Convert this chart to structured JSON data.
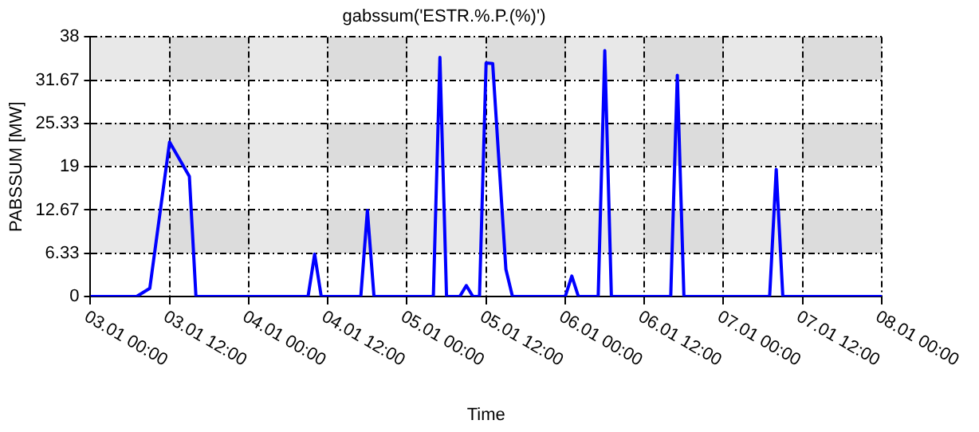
{
  "chart_data": {
    "type": "line",
    "title": "gabssum('ESTR.%.P.(%)')",
    "xlabel": "Time",
    "ylabel": "PABSSUM [MW]",
    "x": [
      "--01-03T00:00",
      "--01-03T07:00",
      "--01-03T09:00",
      "--01-03T12:00",
      "--01-03T15:00",
      "--01-03T16:00",
      "--01-04T09:00",
      "--01-04T10:00",
      "--01-04T11:00",
      "--01-04T17:00",
      "--01-04T18:00",
      "--01-04T19:00",
      "--01-05T04:00",
      "--01-05T05:00",
      "--01-05T06:00",
      "--01-05T08:00",
      "--01-05T09:00",
      "--01-05T10:00",
      "--01-05T11:00",
      "--01-05T12:00",
      "--01-05T13:00",
      "--01-05T15:00",
      "--01-05T16:00",
      "--01-06T00:00",
      "--01-06T01:00",
      "--01-06T02:00",
      "--01-06T05:00",
      "--01-06T06:00",
      "--01-06T07:00",
      "--01-06T16:00",
      "--01-06T17:00",
      "--01-06T18:00",
      "--01-07T07:00",
      "--01-07T08:00",
      "--01-07T09:00",
      "--01-08T00:00"
    ],
    "series": [
      {
        "color": "#0000ff",
        "values": [
          0,
          0,
          1.2,
          22.6,
          17.6,
          0,
          0,
          6.2,
          0,
          0,
          12.6,
          0,
          0,
          35,
          0,
          0,
          1.6,
          0,
          0,
          34.2,
          34.1,
          4,
          0,
          0,
          3,
          0,
          0,
          36,
          0,
          0,
          32.4,
          0,
          0,
          18.6,
          0,
          0
        ]
      }
    ],
    "xlim": [
      "--01-03T00:00",
      "--01-08T00:00"
    ],
    "xticks": [
      {
        "value": "--01-03T00:00",
        "label": "03.01 00:00"
      },
      {
        "value": "--01-03T12:00",
        "label": "03.01 12:00"
      },
      {
        "value": "--01-04T00:00",
        "label": "04.01 00:00"
      },
      {
        "value": "--01-04T12:00",
        "label": "04.01 12:00"
      },
      {
        "value": "--01-05T00:00",
        "label": "05.01 00:00"
      },
      {
        "value": "--01-05T12:00",
        "label": "05.01 12:00"
      },
      {
        "value": "--01-06T00:00",
        "label": "06.01 00:00"
      },
      {
        "value": "--01-06T12:00",
        "label": "06.01 12:00"
      },
      {
        "value": "--01-07T00:00",
        "label": "07.01 00:00"
      },
      {
        "value": "--01-07T12:00",
        "label": "07.01 12:00"
      },
      {
        "value": "--01-08T00:00",
        "label": "08.01 00:00"
      }
    ],
    "ylim": [
      0,
      38
    ],
    "yticks": [
      0,
      6.33,
      12.67,
      19,
      25.33,
      31.67,
      38
    ],
    "grid": true,
    "legend": false,
    "marker": "none",
    "line_style": "solid"
  }
}
